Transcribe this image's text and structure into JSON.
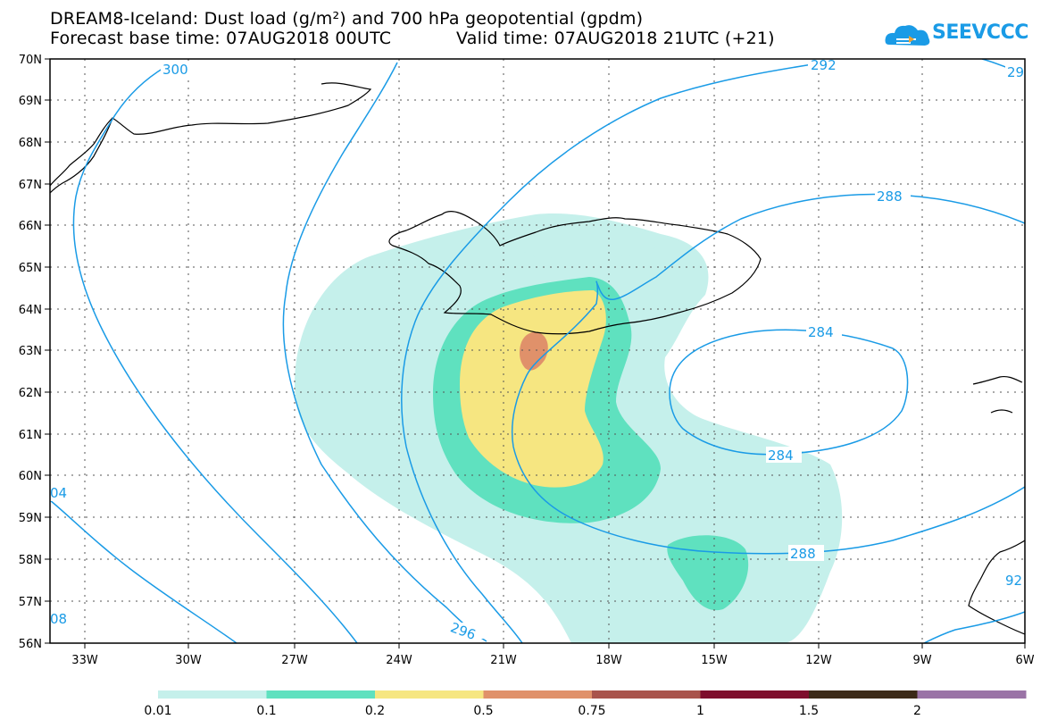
{
  "title": {
    "line1": "DREAM8-Iceland: Dust load (g/m²) and 700 hPa geopotential (gpdm)",
    "line2_base": "Forecast base time: 07AUG2018 00UTC",
    "line2_valid": "Valid time: 07AUG2018 21UTC (+21)"
  },
  "logo": {
    "text": "SEEVCCC",
    "icon": "cloud-logo-icon",
    "color": "#1a9be6"
  },
  "map": {
    "lat_labels": [
      "70N",
      "69N",
      "68N",
      "67N",
      "66N",
      "65N",
      "64N",
      "63N",
      "62N",
      "61N",
      "60N",
      "59N",
      "58N",
      "57N",
      "56N"
    ],
    "lon_labels": [
      "33W",
      "30W",
      "27W",
      "24W",
      "21W",
      "18W",
      "15W",
      "12W",
      "9W",
      "6W"
    ],
    "lat_range": [
      56,
      70
    ],
    "lon_range": [
      -34.5,
      -6
    ],
    "contour_color": "#1a9be6",
    "contour_labels": [
      "300",
      "292",
      "29",
      "288",
      "284",
      "284",
      "288",
      "296",
      "04",
      "08",
      "92"
    ]
  },
  "colorbar": {
    "colors": [
      "#c5f0eb",
      "#5fe1bf",
      "#f6e681",
      "#e0916a",
      "#a9544c",
      "#7e0d2c",
      "#3c2a18",
      "#9a73a6"
    ],
    "tick_labels": [
      "0.01",
      "0.1",
      "0.2",
      "0.5",
      "0.75",
      "1",
      "1.5",
      "2"
    ]
  }
}
